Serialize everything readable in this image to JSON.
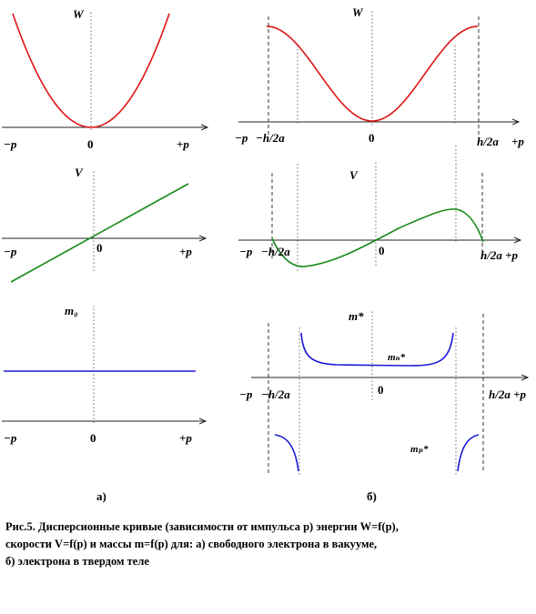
{
  "colors": {
    "energy": "#e01515",
    "velocity": "#1a8a1a",
    "mass": "#1a1ad6"
  },
  "left": {
    "energy_label": "W",
    "velocity_label": "V",
    "mass_label": "m₀",
    "ticks": {
      "neg": "−p",
      "zero": "0",
      "pos": "+p"
    },
    "tag": "а)"
  },
  "right": {
    "energy_label": "W",
    "velocity_label": "V",
    "mass_label": "m*",
    "mass_n_label": "mₙ*",
    "mass_p_label": "mₚ*",
    "ticks": {
      "neg": "−p",
      "neg_h": "−h/2a",
      "zero": "0",
      "pos_h": "h/2a",
      "pos": "+p",
      "pos_h_p": "h/2a +p"
    },
    "tag": "б)"
  },
  "caption": {
    "line1": "Рис.5. Дисперсионные кривые (зависимости от импульса p) энергии W=f(p),",
    "line2": "скорости V=f(p) и массы m=f(p) для: а) свободного электрона в вакууме,",
    "line3": "б) электрона в твердом теле"
  }
}
